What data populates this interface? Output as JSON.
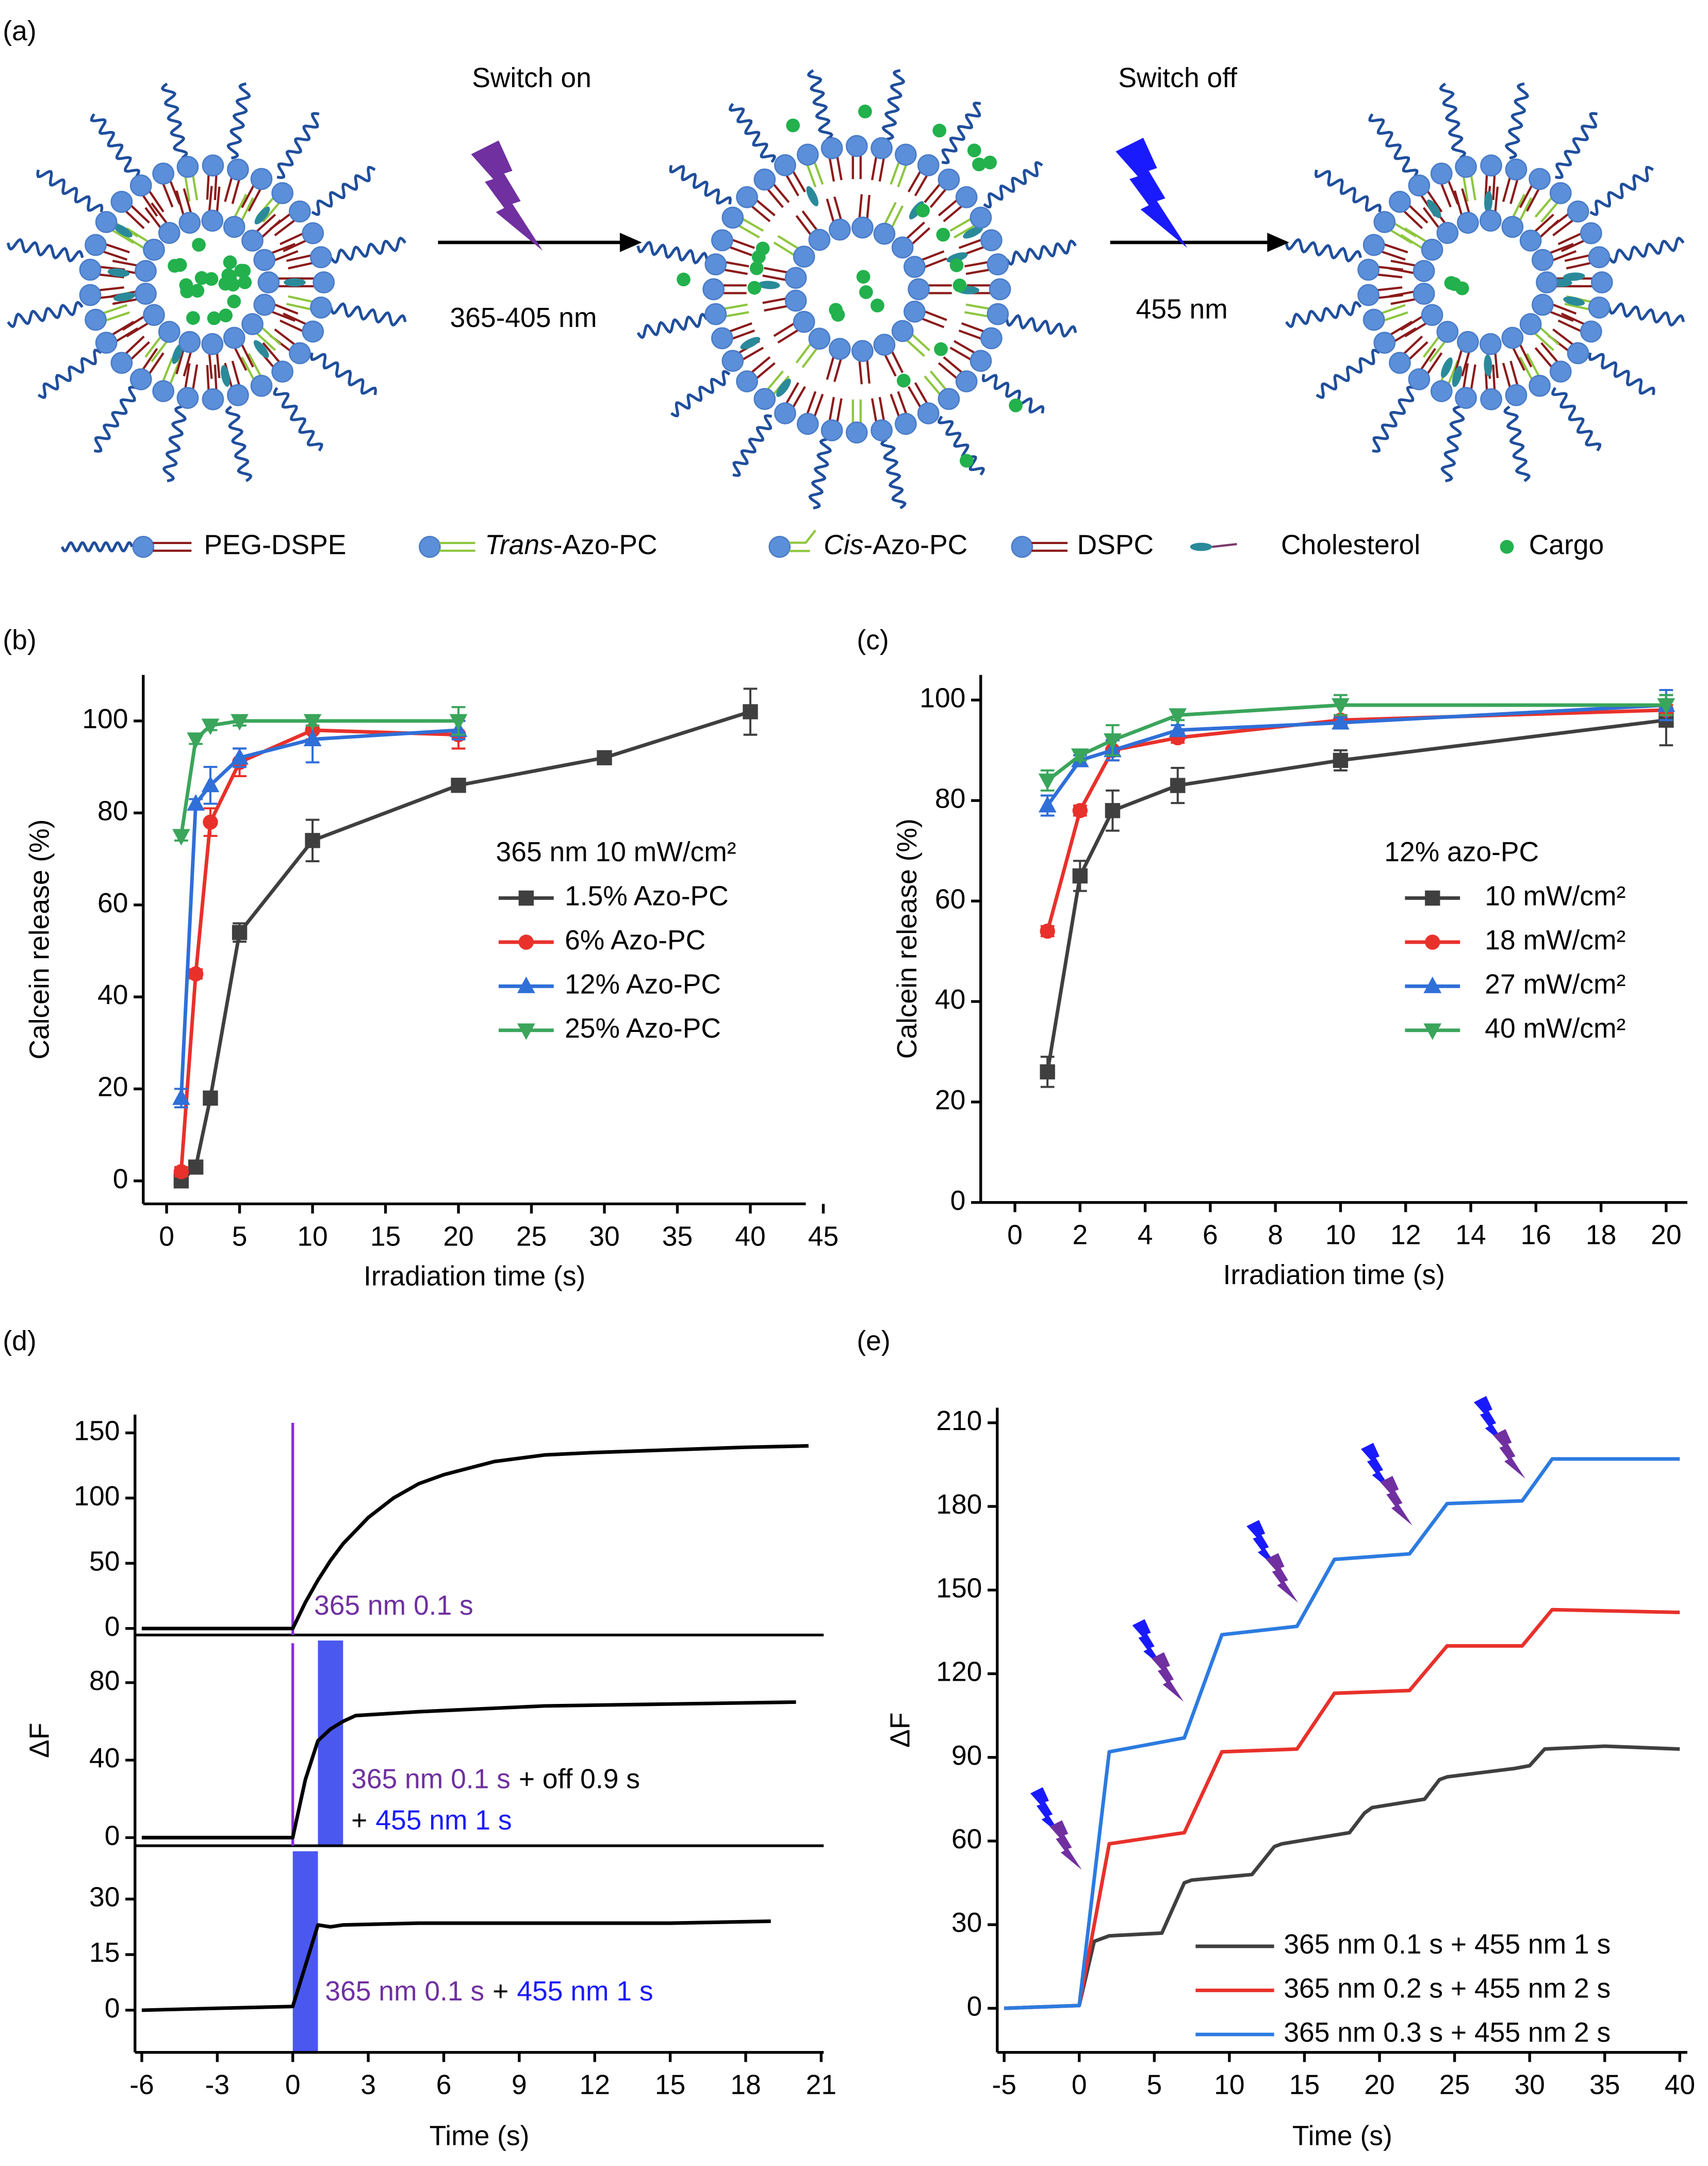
{
  "panel_labels": [
    "(a)",
    "(b)",
    "(c)",
    "(d)",
    "(e)"
  ],
  "diagram": {
    "steps": [
      {
        "label": "Switch on",
        "light": "365-405 nm",
        "color": "#7030a0"
      },
      {
        "label": "Switch off",
        "light": "455 nm",
        "color": "#1a1aff"
      }
    ],
    "legend": [
      {
        "text": "PEG-DSPE"
      },
      {
        "italic": "Trans",
        "text": "-Azo-PC"
      },
      {
        "italic": "Cis",
        "text": "-Azo-PC"
      },
      {
        "text": "DSPC"
      },
      {
        "text": "Cholesterol"
      },
      {
        "text": "Cargo"
      }
    ]
  },
  "chart_data": [
    {
      "type": "line",
      "xlabel": "Irradiation time (s)",
      "ylabel": "Calcein release (%)",
      "xlim": [
        -1.6,
        43.8
      ],
      "xticks": [
        0,
        5,
        10,
        15,
        20,
        25,
        30,
        35,
        40,
        45
      ],
      "ylim": [
        -5,
        110
      ],
      "yticks": [
        0,
        20,
        40,
        60,
        80,
        100
      ],
      "legend_title": "365 nm 10 mW/cm²",
      "series": [
        {
          "name": "1.5% Azo-PC",
          "color": "#3f3f3f",
          "marker": "square",
          "x": [
            1,
            2,
            3,
            5,
            10,
            20,
            30,
            40
          ],
          "values": [
            0,
            3,
            18,
            54,
            74,
            86,
            92,
            102
          ],
          "errors": [
            1,
            0.5,
            1,
            2,
            4.5,
            1,
            1,
            5
          ]
        },
        {
          "name": "6% Azo-PC",
          "color": "#e8312b",
          "marker": "circle",
          "x": [
            1,
            2,
            3,
            5,
            10,
            20
          ],
          "values": [
            2,
            45,
            78,
            91,
            98,
            97
          ],
          "errors": [
            1,
            1,
            3,
            3,
            2,
            3
          ]
        },
        {
          "name": "12% Azo-PC",
          "color": "#2f6fd8",
          "marker": "triangle-up",
          "x": [
            1,
            2,
            3,
            5,
            10,
            20
          ],
          "values": [
            18,
            82,
            86,
            92,
            96,
            98
          ],
          "errors": [
            2,
            1,
            4,
            2,
            5,
            2
          ]
        },
        {
          "name": "25% Azo-PC",
          "color": "#3aa55b",
          "marker": "triangle-down",
          "x": [
            1,
            2,
            3,
            5,
            10,
            20
          ],
          "values": [
            75,
            96,
            99,
            100,
            100,
            100
          ],
          "errors": [
            1,
            1,
            1,
            1,
            1,
            3
          ]
        }
      ]
    },
    {
      "type": "line",
      "xlabel": "Irradiation time (s)",
      "ylabel": "Calcein release (%)",
      "xlim": [
        -1.05,
        20.65
      ],
      "xticks": [
        0,
        2,
        4,
        6,
        8,
        10,
        12,
        14,
        16,
        18,
        20
      ],
      "ylim": [
        0,
        105
      ],
      "yticks": [
        0,
        20,
        40,
        60,
        80,
        100
      ],
      "legend_title": "12% azo-PC",
      "series": [
        {
          "name": "10 mW/cm²",
          "color": "#3f3f3f",
          "marker": "square",
          "x": [
            1,
            2,
            3,
            5,
            10,
            20
          ],
          "values": [
            26,
            65,
            78,
            83,
            88,
            96
          ],
          "errors": [
            3,
            3,
            4,
            3.5,
            2,
            5
          ]
        },
        {
          "name": "18 mW/cm²",
          "color": "#e8312b",
          "marker": "circle",
          "x": [
            1,
            2,
            3,
            5,
            10,
            20
          ],
          "values": [
            54,
            78,
            90,
            92.5,
            96,
            98
          ],
          "errors": [
            1,
            1,
            2,
            1,
            1,
            1
          ]
        },
        {
          "name": "27 mW/cm²",
          "color": "#2f6fd8",
          "marker": "triangle-up",
          "x": [
            1,
            2,
            3,
            5,
            10,
            20
          ],
          "values": [
            79,
            88,
            90,
            94,
            95.5,
            99
          ],
          "errors": [
            2,
            1,
            2,
            1,
            1,
            3
          ]
        },
        {
          "name": "40 mW/cm²",
          "color": "#3aa55b",
          "marker": "triangle-down",
          "x": [
            1,
            2,
            3,
            5,
            10,
            20
          ],
          "values": [
            84,
            89,
            92,
            97,
            99,
            99
          ],
          "errors": [
            2,
            1,
            3,
            1,
            2,
            2
          ]
        }
      ]
    },
    {
      "type": "line",
      "xlim": [
        -6.27,
        21.1
      ],
      "ylim": [
        -5,
        164
      ],
      "yticks": [
        0,
        50,
        100,
        150
      ],
      "marker_line": {
        "x": 0,
        "color": "#8a2be2"
      },
      "annotation": [
        [
          {
            "text": "365 nm 0.1 s",
            "color": "#7030a0"
          }
        ]
      ],
      "series": [
        {
          "color": "#000000",
          "x": [
            -6,
            -3,
            0,
            0.5,
            1,
            1.5,
            2,
            3,
            4,
            5,
            6,
            8,
            10,
            12,
            15,
            18,
            20.5
          ],
          "values": [
            0,
            0,
            0,
            20,
            37,
            52,
            65,
            85,
            100,
            111,
            118,
            128,
            133,
            135,
            137,
            139,
            140
          ]
        }
      ]
    },
    {
      "type": "line",
      "ylabel": "ΔF",
      "xlim": [
        -6.27,
        21.1
      ],
      "ylim": [
        -4.2,
        104.6
      ],
      "yticks": [
        0,
        40,
        80
      ],
      "marker_line": {
        "x": 0,
        "color": "#8a2be2"
      },
      "highlight": {
        "x": [
          1,
          2
        ],
        "color": "#4a58f0"
      },
      "annotation": [
        [
          {
            "text": "365 nm 0.1 s",
            "color": "#7030a0"
          },
          {
            "text": "+ off 0.9 s",
            "color": "#000000"
          }
        ],
        [
          {
            "text": "+",
            "color": "#000000"
          },
          {
            "text": "455 nm 1 s",
            "color": "#1a1aff"
          }
        ]
      ],
      "series": [
        {
          "color": "#000000",
          "x": [
            -6,
            -3,
            0,
            0.5,
            1,
            1.5,
            2,
            2.5,
            5,
            10,
            15,
            20
          ],
          "values": [
            0,
            0,
            0,
            30,
            50,
            56,
            60,
            63,
            65,
            68,
            69,
            70
          ]
        }
      ]
    },
    {
      "type": "line",
      "xlabel": "Time (s)",
      "xlim": [
        -6.27,
        21.1
      ],
      "xticks": [
        -6,
        -3,
        0,
        3,
        6,
        9,
        12,
        15,
        18,
        21
      ],
      "ylim": [
        -11.4,
        44.4
      ],
      "yticks": [
        0,
        15,
        30
      ],
      "highlight": {
        "x": [
          0,
          1
        ],
        "color": "#4a58f0"
      },
      "annotation": [
        [
          {
            "text": "365 nm 0.1 s",
            "color": "#7030a0"
          },
          {
            "text": "+",
            "color": "#000000"
          },
          {
            "text": "455 nm 1 s",
            "color": "#1a1aff"
          }
        ]
      ],
      "series": [
        {
          "color": "#000000",
          "x": [
            -6,
            -3,
            0,
            0.5,
            1,
            1.5,
            2,
            5,
            10,
            15,
            19
          ],
          "values": [
            0,
            0.5,
            1,
            12,
            23,
            22.5,
            23,
            23.5,
            23.5,
            23.5,
            24
          ]
        }
      ]
    },
    {
      "type": "line",
      "xlabel": "Time (s)",
      "ylabel": "ΔF",
      "xlim": [
        -5.46,
        40.5
      ],
      "xticks": [
        -5,
        0,
        5,
        10,
        15,
        20,
        25,
        30,
        35,
        40
      ],
      "ylim": [
        -15.8,
        215.4
      ],
      "yticks": [
        0,
        30,
        60,
        90,
        120,
        150,
        180,
        210
      ],
      "series": [
        {
          "name": "365 nm 0.1 s + 455 nm 1 s",
          "color": "#3f3f3f",
          "x": [
            -5,
            0,
            1,
            2,
            5.5,
            7,
            7.5,
            11.5,
            13,
            13.5,
            18,
            19,
            19.5,
            23,
            24,
            24.5,
            29,
            30,
            31,
            35,
            40
          ],
          "values": [
            0,
            1,
            24,
            26,
            27,
            45,
            46,
            48,
            58,
            59,
            63,
            70,
            72,
            75,
            82,
            83,
            86,
            87,
            93,
            94,
            93
          ]
        },
        {
          "name": "365 nm 0.2 s + 455 nm 2 s",
          "color": "#e8312b",
          "x": [
            -5,
            0,
            2,
            7,
            9.5,
            14.5,
            17,
            22,
            24.5,
            29.5,
            31.5,
            40
          ],
          "values": [
            0,
            1,
            59,
            63,
            92,
            93,
            113,
            114,
            130,
            130,
            143,
            142
          ]
        },
        {
          "name": "365 nm 0.3 s + 455 nm 2 s",
          "color": "#2c7be0",
          "x": [
            -5,
            0,
            2,
            7,
            9.5,
            14.5,
            17,
            22,
            24.5,
            29.5,
            31.5,
            40
          ],
          "values": [
            0,
            1,
            92,
            97,
            134,
            137,
            161,
            163,
            181,
            182,
            197,
            197
          ]
        }
      ]
    }
  ]
}
